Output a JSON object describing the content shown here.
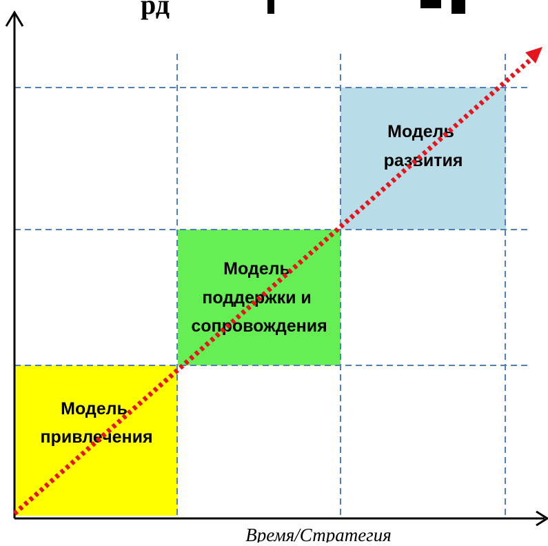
{
  "diagram": {
    "title_fragment": "рд",
    "x_axis_label": "Время/Стратегия",
    "blocks": [
      {
        "lines": [
          "Модель",
          "привлечения"
        ],
        "color": "#ffff00"
      },
      {
        "lines": [
          "Модель",
          "поддержки и",
          "сопровождения"
        ],
        "color": "#66ee55"
      },
      {
        "lines": [
          "Модель",
          "развития"
        ],
        "color": "#b8dce8"
      }
    ],
    "colors": {
      "axis": "#000000",
      "grid": "#4f7fb5",
      "trend_arrow": "#e8141c"
    }
  }
}
